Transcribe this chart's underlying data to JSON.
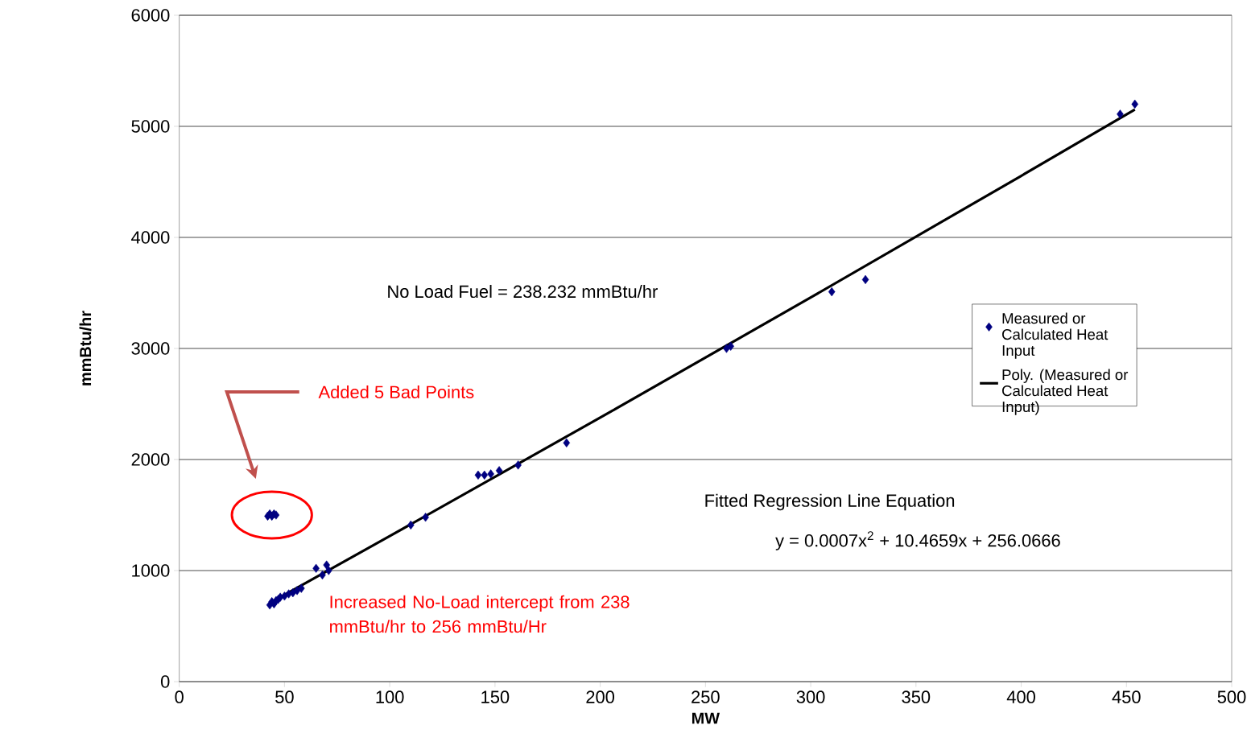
{
  "chart_data": {
    "type": "scatter",
    "xlabel": "MW",
    "ylabel": "mmBtu/hr",
    "xlim": [
      0,
      500
    ],
    "ylim": [
      0,
      6000
    ],
    "xticks": [
      0,
      50,
      100,
      150,
      200,
      250,
      300,
      350,
      400,
      450,
      500
    ],
    "yticks": [
      0,
      1000,
      2000,
      3000,
      4000,
      5000,
      6000
    ],
    "grid": "y",
    "legend": "right",
    "series": [
      {
        "name": "Measured or Calculated Heat Input",
        "marker": "diamond",
        "color": "#000080",
        "x": [
          43,
          44,
          45,
          46,
          47,
          48,
          50,
          52,
          54,
          56,
          58,
          65,
          68,
          70,
          71,
          110,
          117,
          142,
          145,
          148,
          152,
          161,
          184,
          260,
          262,
          310,
          326,
          447,
          454,
          42,
          43,
          44,
          45,
          46
        ],
        "values": [
          690,
          720,
          700,
          730,
          740,
          760,
          770,
          790,
          800,
          820,
          840,
          1020,
          960,
          1050,
          1000,
          1410,
          1480,
          1860,
          1860,
          1870,
          1900,
          1950,
          2150,
          3000,
          3020,
          3510,
          3620,
          5110,
          5200,
          1490,
          1510,
          1490,
          1510,
          1500
        ]
      },
      {
        "name": "Poly. (Measured or Calculated Heat Input)",
        "type": "line",
        "marker": "none",
        "color": "#000000",
        "x": [
          43,
          100,
          200,
          300,
          400,
          454
        ],
        "values": [
          707,
          1310,
          2377,
          3459,
          4554,
          5152
        ]
      }
    ],
    "annotations": [
      "No Load Fuel = 238.232 mmBtu/hr",
      "Added 5 Bad Points",
      "Fitted Regression Line Equation",
      "y = 0.0007x$^{2}$ + 10.4659x + 256.0666",
      "Increased No-Load intercept from 238 mmBtu/hr to 256 mmBtu/Hr"
    ]
  }
}
